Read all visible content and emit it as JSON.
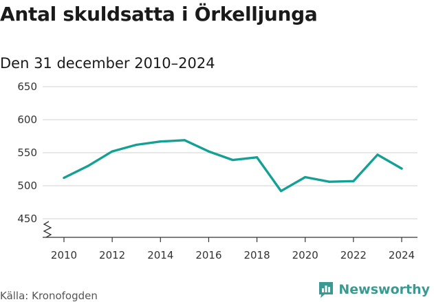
{
  "title": "Antal skuldsatta i Örkelljunga",
  "subtitle": "Den 31 december 2010–2024",
  "source": "Källa: Kronofogden",
  "brand": {
    "name": "Newsworthy",
    "color": "#3a9a92",
    "logo_icon": "newsworthy-logo-icon"
  },
  "colors": {
    "line": "#14a095",
    "grid": "#d9d9d9",
    "axis": "#333333"
  },
  "chart_data": {
    "type": "line",
    "title": "Antal skuldsatta i Örkelljunga",
    "subtitle": "Den 31 december 2010–2024",
    "xlabel": "",
    "ylabel": "",
    "x": [
      2010,
      2011,
      2012,
      2013,
      2014,
      2015,
      2016,
      2017,
      2018,
      2019,
      2020,
      2021,
      2022,
      2023,
      2024
    ],
    "series": [
      {
        "values": [
          512,
          530,
          552,
          562,
          567,
          569,
          552,
          539,
          543,
          492,
          513,
          506,
          507,
          547,
          526
        ]
      }
    ],
    "xticks": [
      "2010",
      "2012",
      "2014",
      "2016",
      "2018",
      "2020",
      "2022",
      "2024"
    ],
    "yticks": [
      "450",
      "500",
      "550",
      "600",
      "650"
    ],
    "ylim": [
      450,
      650
    ],
    "axis_break": true,
    "grid": true,
    "legend": "none"
  }
}
